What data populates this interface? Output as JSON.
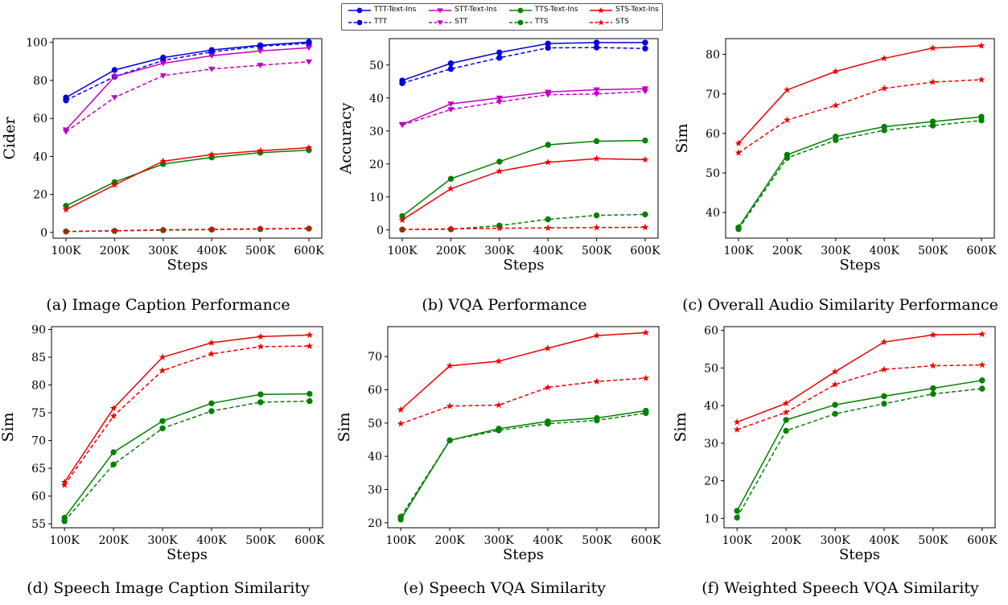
{
  "legend": [
    {
      "label": "TTT-Text-Ins",
      "color": "#0000dd",
      "style": "solid",
      "marker": "circle"
    },
    {
      "label": "STT-Text-Ins",
      "color": "#c000c0",
      "style": "solid",
      "marker": "tri"
    },
    {
      "label": "TTS-Text-Ins",
      "color": "#008000",
      "style": "solid",
      "marker": "circle"
    },
    {
      "label": "STS-Text-Ins",
      "color": "#ee0000",
      "style": "solid",
      "marker": "star"
    },
    {
      "label": "TTT",
      "color": "#0000dd",
      "style": "dashed",
      "marker": "circle"
    },
    {
      "label": "STT",
      "color": "#c000c0",
      "style": "dashed",
      "marker": "tri"
    },
    {
      "label": "TTS",
      "color": "#008000",
      "style": "dashed",
      "marker": "circle"
    },
    {
      "label": "STS",
      "color": "#ee0000",
      "style": "dashed",
      "marker": "star"
    }
  ],
  "chart_data": [
    {
      "type": "line",
      "caption": "(a) Image Caption Performance",
      "xlabel": "Steps",
      "ylabel": "Cider",
      "categories": [
        "100K",
        "200K",
        "300K",
        "400K",
        "500K",
        "600K"
      ],
      "ylim": [
        -3,
        102
      ],
      "yticks": [
        0,
        20,
        40,
        60,
        80,
        100
      ],
      "series": [
        {
          "name": "TTT-Text-Ins",
          "values": [
            71,
            85.5,
            92,
            96,
            98.5,
            100.2
          ]
        },
        {
          "name": "TTT",
          "values": [
            69.5,
            82,
            90.5,
            95,
            98,
            99.5
          ]
        },
        {
          "name": "STT-Text-Ins",
          "values": [
            54,
            82,
            89,
            93,
            95.5,
            97.2
          ]
        },
        {
          "name": "STT",
          "values": [
            53,
            71,
            82.5,
            86,
            88,
            89.8
          ]
        },
        {
          "name": "TTS-Text-Ins",
          "values": [
            14,
            26.5,
            36,
            39.5,
            42,
            43.3
          ]
        },
        {
          "name": "STS-Text-Ins",
          "values": [
            12,
            25,
            37.5,
            41,
            43,
            44.6
          ]
        },
        {
          "name": "TTS",
          "values": [
            0.5,
            0.8,
            1.2,
            1.5,
            1.8,
            2.0
          ]
        },
        {
          "name": "STS",
          "values": [
            0.5,
            0.9,
            1.4,
            1.6,
            1.9,
            2.1
          ]
        }
      ]
    },
    {
      "type": "line",
      "caption": "(b) VQA Performance",
      "xlabel": "Steps",
      "ylabel": "Accuracy",
      "categories": [
        "100K",
        "200K",
        "300K",
        "400K",
        "500K",
        "600K"
      ],
      "ylim": [
        -2.5,
        58
      ],
      "yticks": [
        0,
        10,
        20,
        30,
        40,
        50
      ],
      "series": [
        {
          "name": "TTT-Text-Ins",
          "values": [
            45.3,
            50.5,
            53.8,
            56.5,
            56.8,
            56.8
          ]
        },
        {
          "name": "TTT",
          "values": [
            44.5,
            48.8,
            52.2,
            55.2,
            55.3,
            55.0
          ]
        },
        {
          "name": "STT-Text-Ins",
          "values": [
            32.0,
            38.2,
            40.0,
            41.8,
            42.5,
            42.8
          ]
        },
        {
          "name": "STT",
          "values": [
            31.8,
            36.5,
            38.8,
            41.0,
            41.2,
            42.0
          ]
        },
        {
          "name": "TTS-Text-Ins",
          "values": [
            4.2,
            15.5,
            20.7,
            25.8,
            26.9,
            27.1
          ]
        },
        {
          "name": "STS-Text-Ins",
          "values": [
            3.0,
            12.5,
            17.8,
            20.5,
            21.6,
            21.3
          ]
        },
        {
          "name": "TTS",
          "values": [
            0.1,
            0.2,
            1.3,
            3.2,
            4.4,
            4.7
          ]
        },
        {
          "name": "STS",
          "values": [
            0.1,
            0.3,
            0.5,
            0.6,
            0.7,
            0.8
          ]
        }
      ]
    },
    {
      "type": "line",
      "caption": "(c) Overall Audio Similarity Performance",
      "xlabel": "Steps",
      "ylabel": "Sim",
      "categories": [
        "100K",
        "200K",
        "300K",
        "400K",
        "500K",
        "600K"
      ],
      "ylim": [
        33.5,
        84
      ],
      "yticks": [
        40,
        50,
        60,
        70,
        80
      ],
      "series": [
        {
          "name": "STS-Text-Ins",
          "values": [
            57.5,
            71.0,
            75.7,
            79.0,
            81.6,
            82.2
          ]
        },
        {
          "name": "STS",
          "values": [
            55.1,
            63.4,
            67.1,
            71.4,
            73.0,
            73.6
          ]
        },
        {
          "name": "TTS-Text-Ins",
          "values": [
            36.2,
            54.6,
            59.2,
            61.7,
            63.0,
            64.2
          ]
        },
        {
          "name": "TTS",
          "values": [
            35.8,
            53.8,
            58.3,
            60.8,
            62.0,
            63.3
          ]
        }
      ]
    },
    {
      "type": "line",
      "caption": "(d) Speech Image Caption Similarity",
      "xlabel": "Steps",
      "ylabel": "Sim",
      "categories": [
        "100K",
        "200K",
        "300K",
        "400K",
        "500K",
        "600K"
      ],
      "ylim": [
        54.3,
        90.5
      ],
      "yticks": [
        55,
        60,
        65,
        70,
        75,
        80,
        85,
        90
      ],
      "series": [
        {
          "name": "STS-Text-Ins",
          "values": [
            62.5,
            75.8,
            85.0,
            87.6,
            88.7,
            89.0
          ]
        },
        {
          "name": "STS",
          "values": [
            62.0,
            74.4,
            82.6,
            85.6,
            86.9,
            87.0
          ]
        },
        {
          "name": "TTS-Text-Ins",
          "values": [
            56.1,
            67.9,
            73.5,
            76.7,
            78.3,
            78.4
          ]
        },
        {
          "name": "TTS",
          "values": [
            55.5,
            65.7,
            72.2,
            75.3,
            76.9,
            77.1
          ]
        }
      ]
    },
    {
      "type": "line",
      "caption": "(e) Speech VQA Similarity",
      "xlabel": "Steps",
      "ylabel": "Sim",
      "categories": [
        "100K",
        "200K",
        "300K",
        "400K",
        "500K",
        "600K"
      ],
      "ylim": [
        18.5,
        79
      ],
      "yticks": [
        20,
        30,
        40,
        50,
        60,
        70
      ],
      "series": [
        {
          "name": "STS-Text-Ins",
          "values": [
            54.0,
            67.2,
            68.6,
            72.5,
            76.3,
            77.2
          ]
        },
        {
          "name": "STS",
          "values": [
            49.8,
            55.1,
            55.4,
            60.7,
            62.5,
            63.5
          ]
        },
        {
          "name": "TTS-Text-Ins",
          "values": [
            21.0,
            44.8,
            48.3,
            50.5,
            51.5,
            53.7
          ]
        },
        {
          "name": "TTS",
          "values": [
            21.8,
            44.8,
            47.8,
            49.8,
            50.8,
            53.0
          ]
        }
      ]
    },
    {
      "type": "line",
      "caption": "(f) Weighted Speech VQA Similarity",
      "xlabel": "Steps",
      "ylabel": "Sim",
      "categories": [
        "100K",
        "200K",
        "300K",
        "400K",
        "500K",
        "600K"
      ],
      "ylim": [
        7.5,
        61
      ],
      "yticks": [
        10,
        20,
        30,
        40,
        50,
        60
      ],
      "series": [
        {
          "name": "STS-Text-Ins",
          "values": [
            35.6,
            40.6,
            49.0,
            56.9,
            58.8,
            59.0
          ]
        },
        {
          "name": "STS",
          "values": [
            33.6,
            38.2,
            45.6,
            49.6,
            50.6,
            50.8
          ]
        },
        {
          "name": "TTS-Text-Ins",
          "values": [
            12.0,
            36.2,
            40.2,
            42.5,
            44.6,
            46.7
          ]
        },
        {
          "name": "TTS",
          "values": [
            10.2,
            33.3,
            37.8,
            40.5,
            43.1,
            44.5
          ]
        }
      ]
    }
  ]
}
